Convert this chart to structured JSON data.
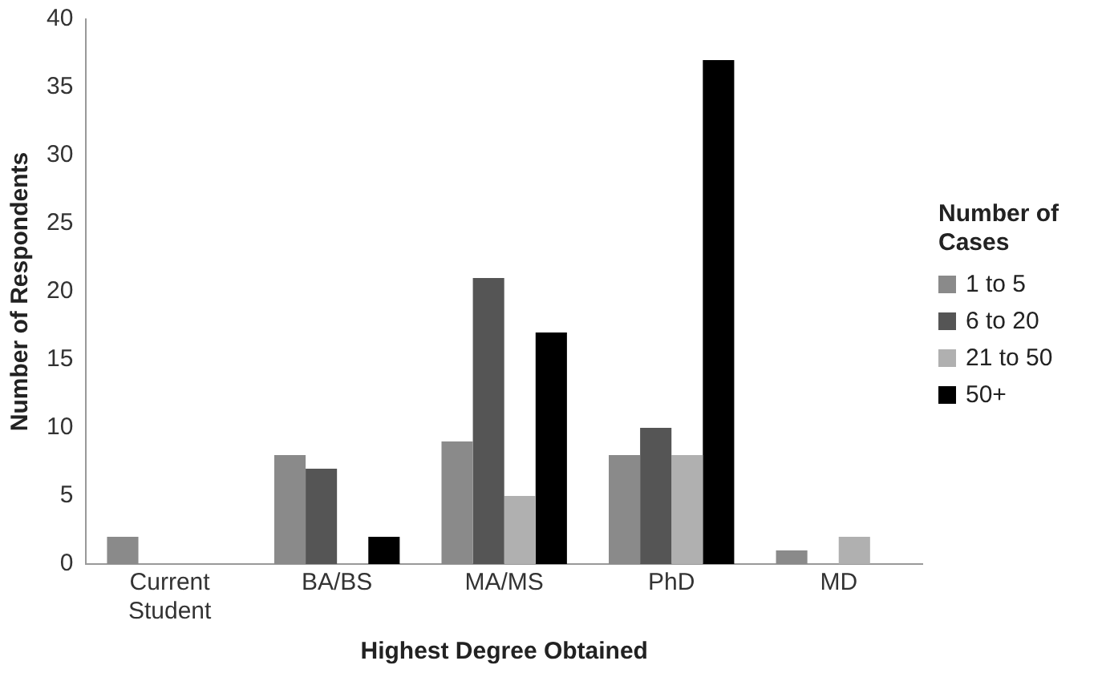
{
  "chart_data": {
    "type": "bar",
    "xlabel": "Highest Degree Obtained",
    "ylabel": "Number of Respondents",
    "legend_title": "Number of Cases",
    "categories": [
      "Current Student",
      "BA/BS",
      "MA/MS",
      "PhD",
      "MD"
    ],
    "series": [
      {
        "name": "1 to 5",
        "color": "#8a8a8a",
        "values": [
          2,
          8,
          9,
          8,
          1
        ]
      },
      {
        "name": "6 to 20",
        "color": "#555555",
        "values": [
          0,
          7,
          21,
          10,
          0
        ]
      },
      {
        "name": "21 to 50",
        "color": "#b0b0b0",
        "values": [
          0,
          0,
          5,
          8,
          2
        ]
      },
      {
        "name": "50+",
        "color": "#000000",
        "values": [
          0,
          2,
          17,
          37,
          0
        ]
      }
    ],
    "ylim": [
      0,
      40
    ],
    "yticks": [
      0,
      5,
      10,
      15,
      20,
      25,
      30,
      35,
      40
    ],
    "grid": false,
    "legend": "right"
  }
}
